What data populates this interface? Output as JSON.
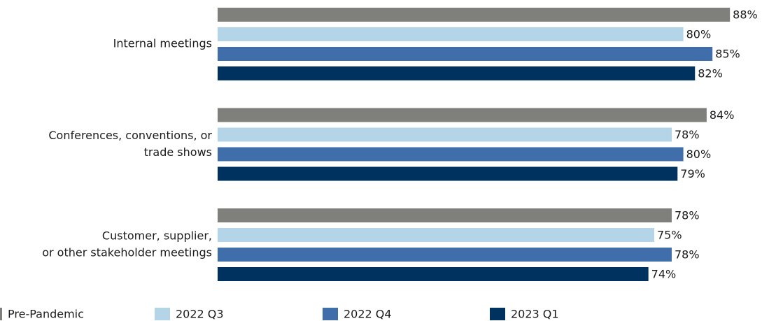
{
  "chart_data": {
    "type": "hbar",
    "categories": [
      [
        "Internal meetings"
      ],
      [
        "Conferences, conventions, or",
        "trade shows"
      ],
      [
        "Customer, supplier,",
        "or other stakeholder meetings"
      ]
    ],
    "series": [
      {
        "name": "Pre-Pandemic",
        "color": "#7f7f7b",
        "values": [
          88,
          84,
          78
        ],
        "value_labels": [
          "88%",
          "84%",
          "78%"
        ]
      },
      {
        "name": "2022 Q3",
        "color": "#b4d4e8",
        "values": [
          80,
          78,
          75
        ],
        "value_labels": [
          "80%",
          "78%",
          "75%"
        ]
      },
      {
        "name": "2022 Q4",
        "color": "#3f6eaa",
        "values": [
          85,
          80,
          78
        ],
        "value_labels": [
          "85%",
          "80%",
          "78%"
        ]
      },
      {
        "name": "2023 Q1",
        "color": "#00325f",
        "values": [
          82,
          79,
          74
        ],
        "value_labels": [
          "82%",
          "79%",
          "74%"
        ]
      }
    ],
    "legend": "bottom"
  }
}
